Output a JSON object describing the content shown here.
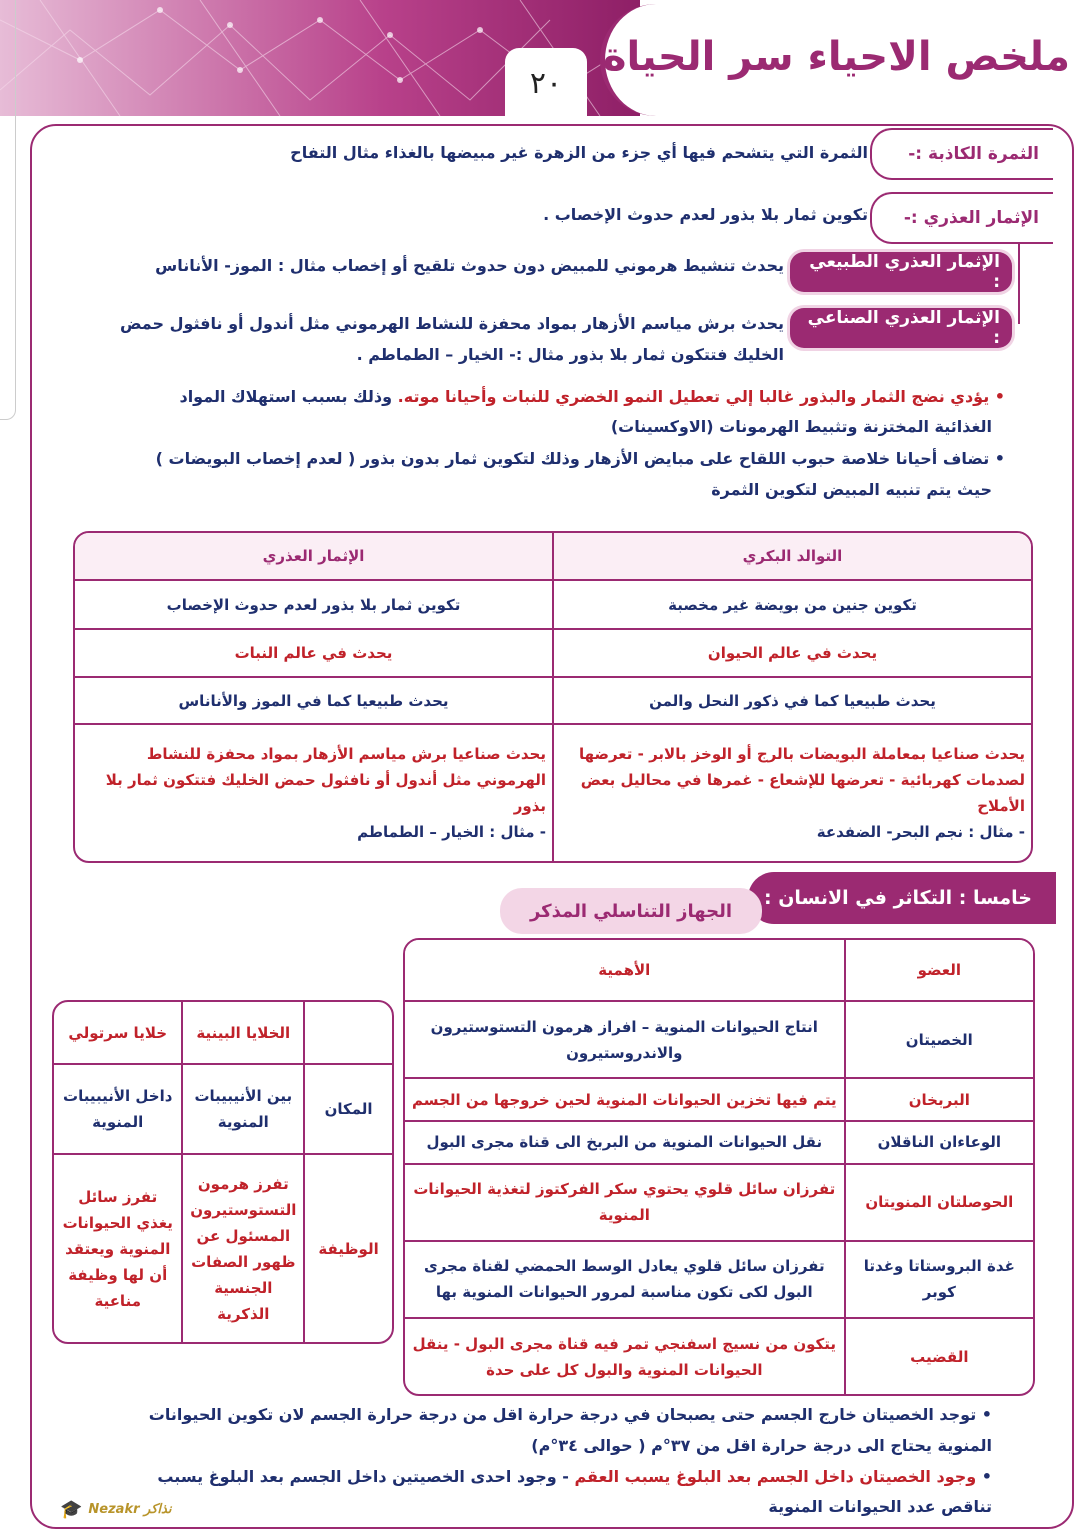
{
  "header": {
    "title": "ملخص الاحياء سر الحياة",
    "page_number": "٢٠"
  },
  "defs": [
    {
      "label": "الثمرة الكاذبة :-",
      "text": "الثمرة التي يتشحم فيها أي جزء من الزهرة غير مبيضها بالغذاء مثال التفاح"
    },
    {
      "label": "الإثمار العذري :-",
      "text": "تكوين ثمار بلا بذور لعدم حدوث الإخصاب ."
    },
    {
      "label": "الإثمار العذري الطبيعي :",
      "text": "يحدث تنشيط هرموني للمبيض دون حدوث تلقيح أو إخصاب مثال : الموز- الأناناس"
    },
    {
      "label": "الإثمار العذري الصناعي :",
      "text": "يحدث برش مياسم الأزهار بمواد محفزة للنشاط الهرموني مثل أندول أو نافثول حمض",
      "text2": "الخليك فتتكون ثمار بلا بذور مثال :- الخيار – الطماطم ."
    }
  ],
  "bullets1": [
    {
      "red": "يؤدي نضج الثمار والبذور غالبا إلي تعطيل النمو الخضري للنبات وأحيانا موته.",
      "rest": " وذلك بسبب استهلاك المواد",
      "line2": "الغذائية المختزنة وتثبيط الهرمونات (الاوكسينات)"
    },
    {
      "text": "تضاف أحيانا خلاصة حبوب اللقاح على مبايض الأزهار وذلك لتكوين ثمار بدون بذور ( لعدم إخصاب البويضات )",
      "line2": "حيث يتم تنبيه المبيض لتكوين الثمرة"
    }
  ],
  "table1": {
    "headers": [
      "التوالد البكري",
      "الإثمار العذري"
    ],
    "rows": [
      [
        "تكوين جنين من بويضة غير مخصبة",
        "تكوين ثمار بلا بذور لعدم حدوث الإخصاب"
      ],
      [
        "يحدث في عالم الحيوان",
        "يحدث في عالم النبات"
      ],
      [
        "يحدث طبيعيا كما في ذكور النحل والمن",
        "يحدث طبيعيا كما في الموز والأناناس"
      ]
    ],
    "last": {
      "a": "يحدث صناعيا بمعاملة البويضات بالرج أو الوخز بالابر - تعرضها لصدمات كهربائية - تعرضها للإشعاع - غمرها في محاليل بعض الأملاح",
      "a_ex": "- مثال : نجم البحر- الضفدعة",
      "b": "يحدث صناعيا برش مياسم الأزهار بمواد محفزة للنشاط الهرموني مثل أندول أو نافثول حمض الخليك فتتكون ثمار بلا بذور",
      "b_ex": "- مثال : الخيار – الطماطم"
    }
  },
  "section": {
    "title": "خامسا : التكاثر في الانسان :",
    "subtitle": "الجهاز التناسلي المذكر"
  },
  "table2": {
    "headers": [
      "العضو",
      "الأهمية"
    ],
    "rows": [
      {
        "organ": "الخصيتان",
        "desc": "انتاج الحيوانات المنوية – افراز هرمون التستوستيرون والاندروستيرون",
        "color": "blue"
      },
      {
        "organ": "البربخان",
        "desc": "يتم فيها تخزين الحيوانات المنوية لحين خروجها من الجسم",
        "color": "red"
      },
      {
        "organ": "الوعاءان الناقلان",
        "desc": "نقل الحيوانات المنوية من البربخ الى قناة مجرى البول",
        "color": "blue"
      },
      {
        "organ": "الحوصلتان المنويتان",
        "desc": "تفرزان سائل قلوي يحتوي سكر الفركتوز لتغذية الحيوانات المنوية",
        "color": "red"
      },
      {
        "organ": "غدة البروستاتا وغدتا كوبر",
        "desc": "تفرزان سائل قلوي يعادل الوسط الحمضي لقناة مجرى البول لكى تكون مناسبة لمرور الحيوانات المنوية بها",
        "color": "blue"
      },
      {
        "organ": "القضيب",
        "desc": "يتكون من نسيج اسفنجي تمر فيه قناة مجرى البول - ينقل الحيوانات المنوية والبول كل على حدة",
        "color": "red"
      }
    ]
  },
  "table3": {
    "headers": [
      "",
      "الخلايا البينية",
      "خلايا سرتولي"
    ],
    "rows": [
      [
        "المكان",
        "بين الأنيبيبات المنوية",
        "داخل الأنيبيبات المنوية"
      ],
      [
        "الوظيفة",
        "تفرز هرمون التستوستيرون المسئول عن ظهور الصفات الجنسية الذكرية",
        "تفرز سائل يغذي الحيوانات المنوية ويعتقد أن لها وظيفة مناعية"
      ]
    ]
  },
  "bullets2": [
    {
      "text": "توجد الخصيتان خارج الجسم حتى يصبحان في درجة حرارة اقل من درجة حرارة الجسم لان تكوين الحيوانات",
      "line2": "المنوية يحتاج الى درجة حرارة اقل من ٣٧°م ( حوالى ٣٤°م)"
    },
    {
      "red": "وجود الخصيتان داخل الجسم بعد البلوغ يسبب العقم",
      "rest": " - وجود احدى الخصيتين داخل الجسم بعد البلوغ يسبب",
      "line2": "تناقص عدد الحيوانات المنوية"
    }
  ],
  "watermark": "Nezakr نذاكر",
  "colors": {
    "accent": "#9b2a72",
    "text_blue": "#1f2f6e",
    "text_red": "#c0222a"
  }
}
